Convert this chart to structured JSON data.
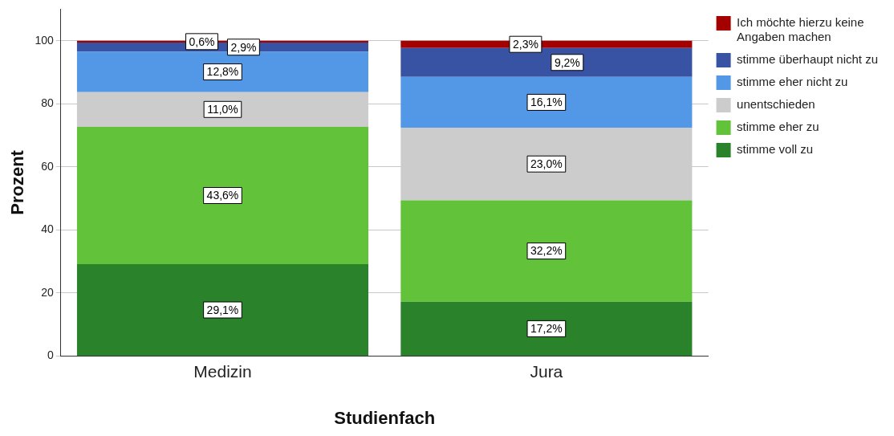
{
  "chart_data": {
    "type": "bar",
    "stacked": true,
    "xlabel": "Studienfach",
    "ylabel": "Prozent",
    "categories": [
      "Medizin",
      "Jura"
    ],
    "series": [
      {
        "name": "stimme voll zu",
        "color": "#2a832a",
        "values": [
          29.1,
          17.2
        ],
        "value_labels": [
          "29,1%",
          "17,2%"
        ]
      },
      {
        "name": "stimme eher zu",
        "color": "#62c23a",
        "values": [
          43.6,
          32.2
        ],
        "value_labels": [
          "43,6%",
          "32,2%"
        ]
      },
      {
        "name": "unentschieden",
        "color": "#cccccc",
        "values": [
          11.0,
          23.0
        ],
        "value_labels": [
          "11,0%",
          "23,0%"
        ]
      },
      {
        "name": "stimme eher nicht zu",
        "color": "#5398e6",
        "values": [
          12.8,
          16.1
        ],
        "value_labels": [
          "12,8%",
          "16,1%"
        ]
      },
      {
        "name": "stimme überhaupt nicht zu",
        "color": "#3953a4",
        "values": [
          2.9,
          9.2
        ],
        "value_labels": [
          "2,9%",
          "9,2%"
        ]
      },
      {
        "name": "Ich möchte hierzu keine Angaben machen",
        "color": "#a50000",
        "values": [
          0.6,
          2.3
        ],
        "value_labels": [
          "0,6%",
          "2,3%"
        ]
      }
    ],
    "ylim": [
      0,
      110
    ],
    "yticks": [
      0,
      20,
      40,
      60,
      80,
      100
    ],
    "grid": "y",
    "legend": "right"
  }
}
